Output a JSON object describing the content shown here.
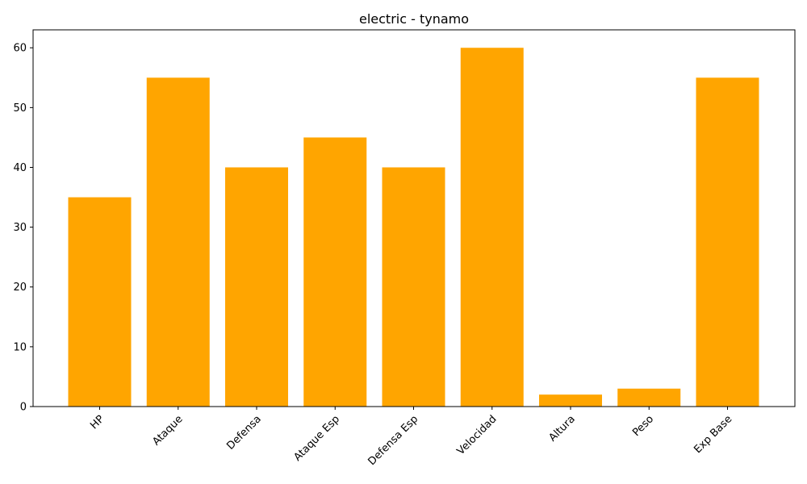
{
  "chart_data": {
    "type": "bar",
    "title": "electric - tynamo",
    "xlabel": "",
    "ylabel": "",
    "categories": [
      "HP",
      "Ataque",
      "Defensa",
      "Ataque Esp",
      "Defensa Esp",
      "Velocidad",
      "Altura",
      "Peso",
      "Exp Base"
    ],
    "values": [
      35,
      55,
      40,
      45,
      40,
      60,
      2,
      3,
      55
    ],
    "ylim": [
      0,
      63
    ],
    "yticks": [
      0,
      10,
      20,
      30,
      40,
      50,
      60
    ],
    "bar_color": "#ffa500",
    "grid": false,
    "legend": "none"
  }
}
